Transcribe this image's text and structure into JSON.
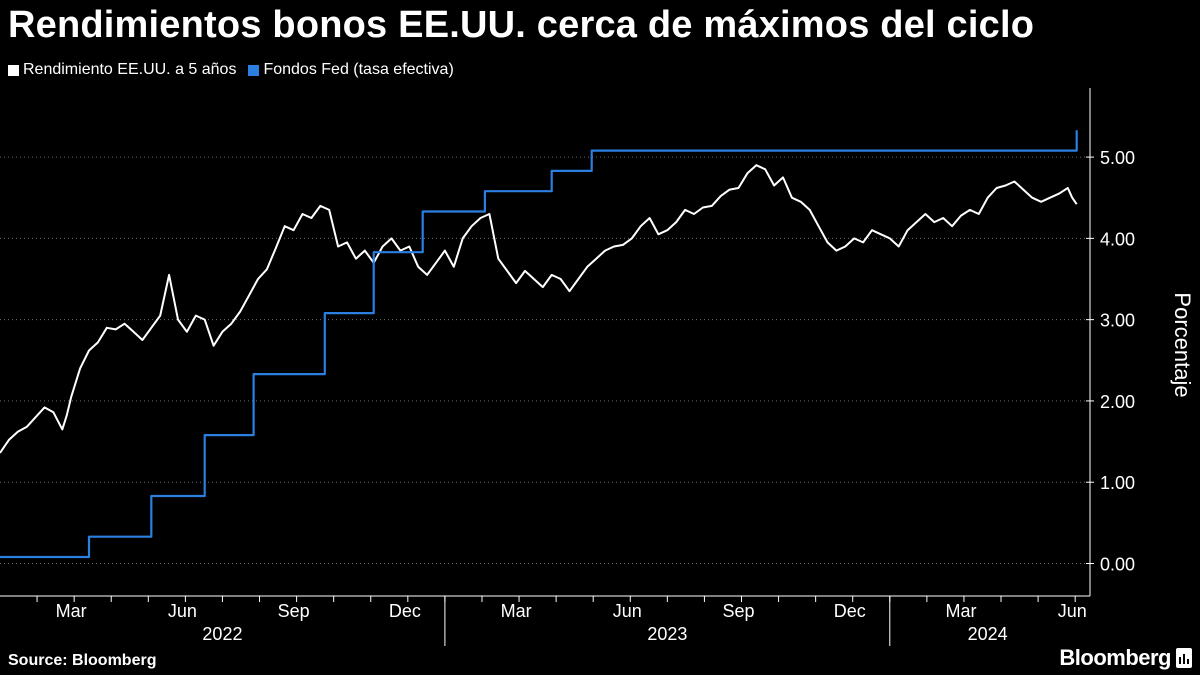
{
  "title": "Rendimientos bonos EE.UU. cerca de máximos del ciclo",
  "legend": [
    {
      "label": "Rendimiento EE.UU. a 5 años",
      "color": "#ffffff"
    },
    {
      "label": "Fondos Fed (tasa efectiva)",
      "color": "#2b7fe0"
    }
  ],
  "source": "Source: Bloomberg",
  "brand": "Bloomberg",
  "chart_data": {
    "type": "line",
    "ylabel": "Porcentaje",
    "xlim": [
      2022.0,
      2024.45
    ],
    "ylim": [
      -0.4,
      5.85
    ],
    "yticks": [
      0,
      1,
      2,
      3,
      4,
      5
    ],
    "ytick_labels": [
      "0.00",
      "1.00",
      "2.00",
      "3.00",
      "4.00",
      "5.00"
    ],
    "x_month_ticks": [
      {
        "label": "Mar",
        "x": 2022.16
      },
      {
        "label": "Jun",
        "x": 2022.41
      },
      {
        "label": "Sep",
        "x": 2022.66
      },
      {
        "label": "Dec",
        "x": 2022.91
      },
      {
        "label": "Mar",
        "x": 2023.16
      },
      {
        "label": "Jun",
        "x": 2023.41
      },
      {
        "label": "Sep",
        "x": 2023.66
      },
      {
        "label": "Dec",
        "x": 2023.91
      },
      {
        "label": "Mar",
        "x": 2024.16
      },
      {
        "label": "Jun",
        "x": 2024.41
      }
    ],
    "x_year_labels": [
      {
        "label": "2022",
        "x": 2022.5
      },
      {
        "label": "2023",
        "x": 2023.5
      },
      {
        "label": "2024",
        "x": 2024.22
      }
    ],
    "year_dividers": [
      2023.0,
      2024.0
    ],
    "series": [
      {
        "name": "Rendimiento EE.UU. a 5 años",
        "color": "#ffffff",
        "style": "line",
        "x": [
          2022.0,
          2022.02,
          2022.04,
          2022.06,
          2022.08,
          2022.1,
          2022.12,
          2022.14,
          2022.15,
          2022.16,
          2022.18,
          2022.2,
          2022.22,
          2022.24,
          2022.26,
          2022.28,
          2022.3,
          2022.32,
          2022.34,
          2022.36,
          2022.38,
          2022.4,
          2022.42,
          2022.44,
          2022.46,
          2022.48,
          2022.5,
          2022.52,
          2022.54,
          2022.56,
          2022.58,
          2022.6,
          2022.62,
          2022.64,
          2022.66,
          2022.68,
          2022.7,
          2022.72,
          2022.74,
          2022.76,
          2022.78,
          2022.8,
          2022.82,
          2022.84,
          2022.86,
          2022.88,
          2022.9,
          2022.92,
          2022.94,
          2022.96,
          2022.98,
          2023.0,
          2023.02,
          2023.04,
          2023.06,
          2023.08,
          2023.1,
          2023.12,
          2023.14,
          2023.16,
          2023.18,
          2023.2,
          2023.22,
          2023.24,
          2023.26,
          2023.28,
          2023.3,
          2023.32,
          2023.34,
          2023.36,
          2023.38,
          2023.4,
          2023.42,
          2023.44,
          2023.46,
          2023.48,
          2023.5,
          2023.52,
          2023.54,
          2023.56,
          2023.58,
          2023.6,
          2023.62,
          2023.64,
          2023.66,
          2023.68,
          2023.7,
          2023.72,
          2023.74,
          2023.76,
          2023.78,
          2023.8,
          2023.82,
          2023.84,
          2023.86,
          2023.88,
          2023.9,
          2023.92,
          2023.94,
          2023.96,
          2023.98,
          2024.0,
          2024.02,
          2024.04,
          2024.06,
          2024.08,
          2024.1,
          2024.12,
          2024.14,
          2024.16,
          2024.18,
          2024.2,
          2024.22,
          2024.24,
          2024.26,
          2024.28,
          2024.3,
          2024.32,
          2024.34,
          2024.36,
          2024.38,
          2024.4,
          2024.41,
          2024.42
        ],
        "y": [
          1.36,
          1.52,
          1.62,
          1.68,
          1.8,
          1.92,
          1.86,
          1.65,
          1.82,
          2.05,
          2.4,
          2.62,
          2.72,
          2.9,
          2.88,
          2.95,
          2.85,
          2.75,
          2.9,
          3.05,
          3.55,
          3.0,
          2.85,
          3.05,
          3.0,
          2.68,
          2.85,
          2.95,
          3.1,
          3.3,
          3.5,
          3.62,
          3.88,
          4.15,
          4.1,
          4.3,
          4.25,
          4.4,
          4.35,
          3.9,
          3.95,
          3.75,
          3.85,
          3.7,
          3.9,
          4.0,
          3.85,
          3.9,
          3.65,
          3.55,
          3.7,
          3.85,
          3.65,
          4.0,
          4.15,
          4.25,
          4.3,
          3.75,
          3.6,
          3.45,
          3.6,
          3.5,
          3.4,
          3.55,
          3.5,
          3.35,
          3.5,
          3.65,
          3.75,
          3.85,
          3.9,
          3.92,
          4.0,
          4.15,
          4.25,
          4.05,
          4.1,
          4.2,
          4.35,
          4.3,
          4.38,
          4.4,
          4.52,
          4.6,
          4.62,
          4.8,
          4.9,
          4.85,
          4.65,
          4.75,
          4.5,
          4.45,
          4.35,
          4.15,
          3.95,
          3.85,
          3.9,
          4.0,
          3.95,
          4.1,
          4.05,
          4.0,
          3.9,
          4.1,
          4.2,
          4.3,
          4.2,
          4.25,
          4.15,
          4.28,
          4.35,
          4.3,
          4.5,
          4.62,
          4.65,
          4.7,
          4.6,
          4.5,
          4.45,
          4.5,
          4.55,
          4.62,
          4.5,
          4.42
        ]
      },
      {
        "name": "Fondos Fed (tasa efectiva)",
        "color": "#2b7fe0",
        "style": "step",
        "x": [
          2022.0,
          2022.2,
          2022.34,
          2022.46,
          2022.57,
          2022.73,
          2022.84,
          2022.95,
          2023.09,
          2023.24,
          2023.33,
          2024.42
        ],
        "y": [
          0.08,
          0.33,
          0.83,
          1.58,
          2.33,
          3.08,
          3.83,
          4.33,
          4.58,
          4.83,
          5.08,
          5.33
        ]
      }
    ]
  }
}
